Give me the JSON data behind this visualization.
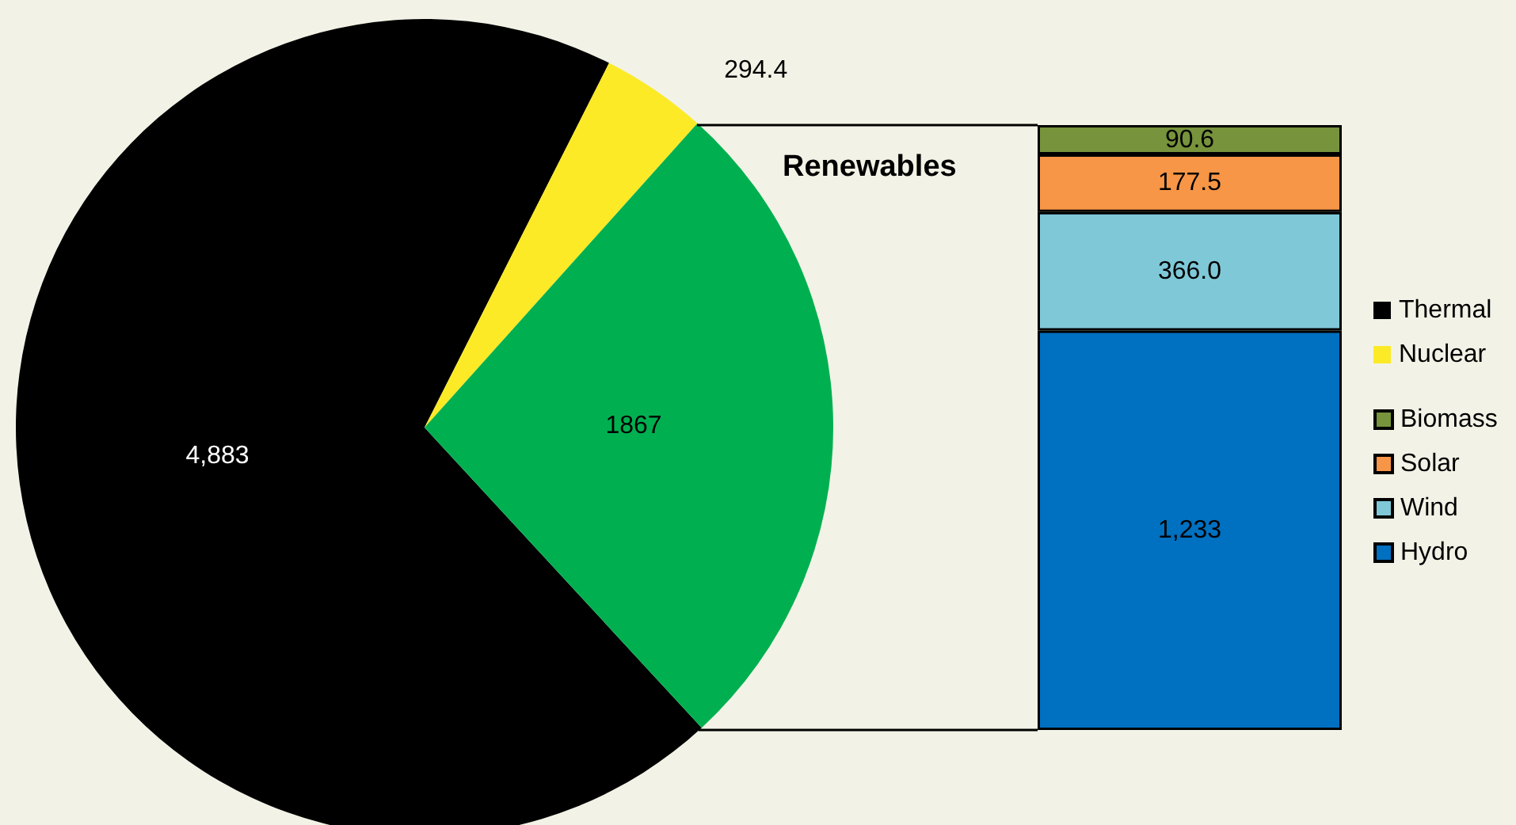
{
  "chart_data": [
    {
      "type": "pie",
      "categories": [
        "Thermal",
        "Nuclear",
        null
      ],
      "values": [
        4883,
        294.4,
        1867
      ],
      "colors": [
        "#000000",
        "#fcea27",
        "#00b050"
      ],
      "value_labels": [
        "4,883",
        "294.4",
        "1867"
      ],
      "legend": "right"
    },
    {
      "type": "bar",
      "title": "Renewables",
      "categories": [
        null
      ],
      "stacked": true,
      "legend": "right",
      "series": [
        {
          "name": "Hydro",
          "color": "#0070c0",
          "values": [
            1233
          ],
          "value_labels": [
            "1,233"
          ]
        },
        {
          "name": "Wind",
          "color": "#7fc8d8",
          "values": [
            366.0
          ],
          "value_labels": [
            "366.0"
          ]
        },
        {
          "name": "Solar",
          "color": "#f79646",
          "values": [
            177.5
          ],
          "value_labels": [
            "177.5"
          ]
        },
        {
          "name": "Biomass",
          "color": "#77933c",
          "values": [
            90.6
          ],
          "value_labels": [
            "90.6"
          ]
        }
      ]
    }
  ]
}
